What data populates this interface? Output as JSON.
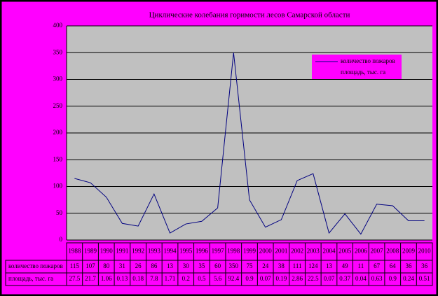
{
  "chart_data": {
    "type": "line",
    "title": "Циклические колебания горимости лесов Самарской области",
    "categories": [
      "1988",
      "1989",
      "1990",
      "1991",
      "1992",
      "1993",
      "1994",
      "1995",
      "1996",
      "1997",
      "1998",
      "1999",
      "2000",
      "2001",
      "2002",
      "2003",
      "2004",
      "2005",
      "2006",
      "2007",
      "2008",
      "2009",
      "2010"
    ],
    "series": [
      {
        "name": "количество пожаров",
        "color": "#000080",
        "values": [
          115,
          107,
          80,
          31,
          26,
          86,
          13,
          30,
          35,
          60,
          350,
          75,
          24,
          38,
          111,
          124,
          13,
          49,
          11,
          67,
          64,
          36,
          36
        ]
      },
      {
        "name": "площадь, тыс. га",
        "values": [
          27.5,
          21.7,
          1.06,
          0.13,
          0.18,
          7.8,
          1.71,
          0.2,
          0.5,
          5.6,
          92.4,
          0.9,
          0.07,
          0.19,
          2.86,
          22.5,
          0.07,
          0.37,
          0.04,
          0.63,
          0.9,
          0.24,
          0.51
        ]
      }
    ],
    "ylim": [
      0,
      400
    ],
    "yticks": [
      0,
      50,
      100,
      150,
      200,
      250,
      300,
      350,
      400
    ],
    "grid": true
  }
}
